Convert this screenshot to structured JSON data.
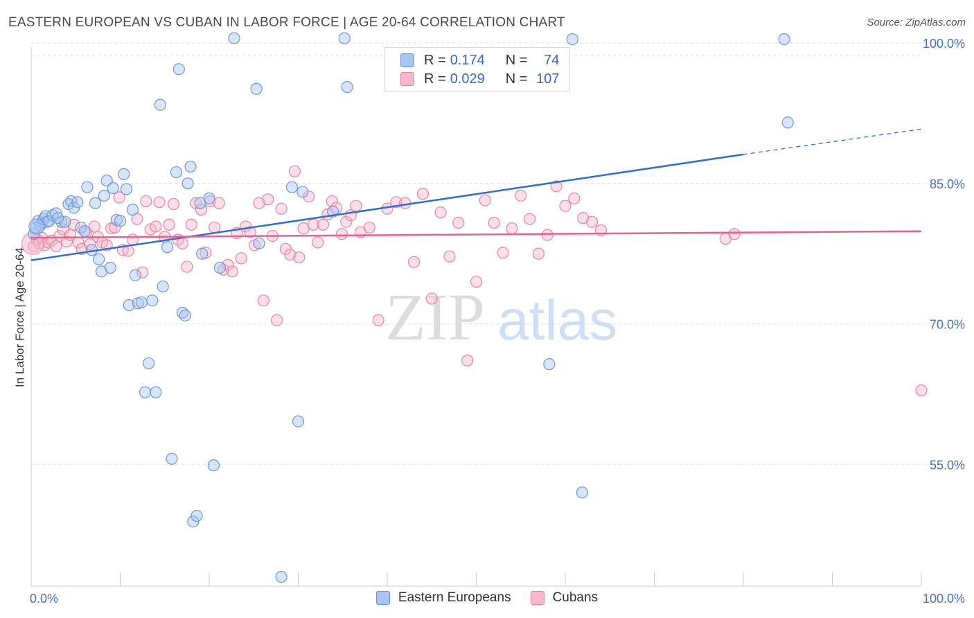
{
  "title": "EASTERN EUROPEAN VS CUBAN IN LABOR FORCE | AGE 20-64 CORRELATION CHART",
  "source": "Source: ZipAtlas.com",
  "watermark": {
    "part1": "ZIP",
    "part2": "atlas"
  },
  "legend": {
    "rows": [
      {
        "r_label": "R =",
        "r_value": "0.174",
        "n_label": "N =",
        "n_value": "74"
      },
      {
        "r_label": "R =",
        "r_value": "0.029",
        "n_label": "N =",
        "n_value": "107"
      }
    ]
  },
  "colors": {
    "blue_fill": "#a9c4f0",
    "blue_stroke": "#6d97dd",
    "blue_line": "#2f6fd0",
    "pink_fill": "#f7b8cb",
    "pink_stroke": "#e8849f",
    "pink_line": "#e8608c",
    "tick_label": "#4472c4",
    "grid": "#dddddd"
  },
  "chart_data": {
    "type": "scatter",
    "xlabel": "",
    "ylabel": "In Labor Force | Age 20-64",
    "xlim": [
      0,
      100
    ],
    "ylim": [
      42,
      100
    ],
    "x_tick_labels": [
      "0.0%",
      "100.0%"
    ],
    "y_ticks": [
      55,
      70,
      85,
      100
    ],
    "y_tick_labels": [
      "55.0%",
      "70.0%",
      "85.0%",
      "100.0%"
    ],
    "grid": true,
    "legend_position": "bottom",
    "series": [
      {
        "name": "Eastern Europeans",
        "r": 0.174,
        "n": 74,
        "trend": {
          "x0": 0,
          "y0": 76.8,
          "x1": 80,
          "y1": 88.1,
          "dash_to_x": 100,
          "dash_to_y": 90.8
        },
        "points": [
          [
            0.8,
            81.0
          ],
          [
            1.0,
            80.5
          ],
          [
            1.2,
            80.8
          ],
          [
            1.4,
            81.2
          ],
          [
            1.6,
            81.5
          ],
          [
            1.8,
            80.9
          ],
          [
            2.0,
            81.0
          ],
          [
            2.4,
            81.6
          ],
          [
            2.8,
            81.8
          ],
          [
            3.4,
            80.9
          ],
          [
            3.8,
            80.9
          ],
          [
            4.2,
            82.8
          ],
          [
            4.5,
            83.1
          ],
          [
            4.8,
            82.4
          ],
          [
            5.2,
            83.0
          ],
          [
            5.6,
            80.3
          ],
          [
            6.0,
            79.9
          ],
          [
            6.3,
            84.6
          ],
          [
            6.8,
            77.9
          ],
          [
            7.2,
            82.9
          ],
          [
            7.6,
            76.9
          ],
          [
            7.9,
            75.6
          ],
          [
            8.2,
            83.7
          ],
          [
            8.5,
            85.3
          ],
          [
            8.9,
            76.0
          ],
          [
            9.2,
            84.5
          ],
          [
            9.6,
            81.1
          ],
          [
            10.0,
            81.0
          ],
          [
            10.4,
            86.0
          ],
          [
            10.7,
            84.4
          ],
          [
            11.0,
            72.0
          ],
          [
            11.4,
            82.2
          ],
          [
            11.7,
            75.2
          ],
          [
            12.0,
            72.2
          ],
          [
            12.4,
            72.3
          ],
          [
            12.8,
            62.7
          ],
          [
            13.2,
            65.8
          ],
          [
            13.6,
            72.5
          ],
          [
            14.0,
            62.7
          ],
          [
            14.5,
            93.4
          ],
          [
            14.8,
            74.0
          ],
          [
            15.3,
            78.2
          ],
          [
            15.8,
            55.6
          ],
          [
            16.3,
            86.2
          ],
          [
            16.6,
            97.2
          ],
          [
            17.0,
            71.2
          ],
          [
            17.3,
            70.9
          ],
          [
            17.6,
            85.0
          ],
          [
            17.9,
            86.8
          ],
          [
            18.2,
            48.9
          ],
          [
            18.6,
            49.5
          ],
          [
            19.0,
            82.9
          ],
          [
            19.2,
            77.5
          ],
          [
            20.0,
            83.4
          ],
          [
            20.5,
            54.9
          ],
          [
            21.2,
            76.0
          ],
          [
            22.8,
            100.5
          ],
          [
            25.3,
            95.1
          ],
          [
            25.6,
            78.6
          ],
          [
            28.1,
            43.0
          ],
          [
            29.3,
            84.6
          ],
          [
            30.0,
            59.6
          ],
          [
            30.5,
            84.1
          ],
          [
            33.9,
            82.0
          ],
          [
            35.2,
            100.5
          ],
          [
            35.5,
            95.3
          ],
          [
            58.2,
            65.7
          ],
          [
            60.8,
            100.4
          ],
          [
            61.9,
            52.0
          ],
          [
            84.6,
            100.4
          ],
          [
            85.0,
            91.5
          ],
          [
            0.3,
            79.6
          ],
          [
            0.5,
            80.3
          ],
          [
            3.0,
            81.3
          ]
        ]
      },
      {
        "name": "Cubans",
        "r": 0.029,
        "n": 107,
        "trend": {
          "x0": 0,
          "y0": 79.2,
          "x1": 100,
          "y1": 79.9
        },
        "points": [
          [
            0.3,
            78.3
          ],
          [
            0.6,
            79.0
          ],
          [
            0.9,
            78.6
          ],
          [
            1.2,
            79.2
          ],
          [
            1.5,
            78.4
          ],
          [
            1.9,
            78.7
          ],
          [
            2.3,
            78.9
          ],
          [
            2.8,
            78.3
          ],
          [
            3.2,
            79.4
          ],
          [
            3.6,
            80.1
          ],
          [
            4.0,
            78.8
          ],
          [
            4.4,
            79.5
          ],
          [
            4.8,
            80.6
          ],
          [
            5.3,
            78.7
          ],
          [
            5.7,
            78.0
          ],
          [
            6.2,
            79.8
          ],
          [
            6.6,
            78.5
          ],
          [
            7.1,
            80.4
          ],
          [
            7.5,
            79.3
          ],
          [
            8.0,
            78.7
          ],
          [
            8.5,
            78.4
          ],
          [
            9.0,
            80.2
          ],
          [
            9.4,
            80.3
          ],
          [
            9.9,
            83.5
          ],
          [
            10.3,
            77.9
          ],
          [
            10.9,
            77.8
          ],
          [
            11.4,
            79.0
          ],
          [
            11.9,
            81.2
          ],
          [
            12.5,
            75.5
          ],
          [
            12.9,
            83.1
          ],
          [
            13.4,
            80.1
          ],
          [
            14.0,
            80.4
          ],
          [
            14.4,
            83.0
          ],
          [
            15.0,
            79.3
          ],
          [
            15.5,
            80.6
          ],
          [
            16.0,
            82.8
          ],
          [
            16.5,
            79.0
          ],
          [
            17.0,
            78.6
          ],
          [
            17.5,
            76.1
          ],
          [
            18.0,
            80.6
          ],
          [
            18.5,
            82.9
          ],
          [
            19.1,
            82.2
          ],
          [
            19.6,
            77.6
          ],
          [
            20.1,
            83.1
          ],
          [
            20.6,
            80.3
          ],
          [
            21.1,
            82.9
          ],
          [
            21.6,
            75.8
          ],
          [
            22.1,
            76.3
          ],
          [
            22.6,
            75.6
          ],
          [
            23.1,
            79.7
          ],
          [
            23.6,
            77.0
          ],
          [
            24.1,
            80.4
          ],
          [
            24.6,
            79.8
          ],
          [
            25.1,
            78.4
          ],
          [
            25.6,
            82.9
          ],
          [
            26.1,
            72.5
          ],
          [
            26.6,
            83.3
          ],
          [
            27.1,
            79.4
          ],
          [
            27.6,
            70.4
          ],
          [
            28.1,
            82.3
          ],
          [
            28.6,
            78.0
          ],
          [
            29.1,
            77.4
          ],
          [
            29.6,
            86.3
          ],
          [
            30.1,
            77.1
          ],
          [
            30.6,
            80.2
          ],
          [
            31.2,
            83.6
          ],
          [
            31.7,
            80.6
          ],
          [
            32.2,
            78.7
          ],
          [
            32.8,
            80.6
          ],
          [
            33.3,
            81.7
          ],
          [
            33.8,
            83.1
          ],
          [
            34.3,
            82.4
          ],
          [
            34.9,
            79.6
          ],
          [
            35.4,
            80.9
          ],
          [
            35.9,
            81.6
          ],
          [
            36.5,
            82.6
          ],
          [
            37.0,
            79.8
          ],
          [
            38.0,
            80.3
          ],
          [
            39.0,
            70.4
          ],
          [
            40.0,
            82.3
          ],
          [
            41.0,
            83.0
          ],
          [
            42.0,
            82.9
          ],
          [
            43.0,
            76.6
          ],
          [
            44.0,
            83.9
          ],
          [
            45.0,
            72.7
          ],
          [
            46.0,
            81.9
          ],
          [
            47.0,
            77.2
          ],
          [
            48.0,
            80.8
          ],
          [
            49.0,
            66.1
          ],
          [
            50.0,
            74.5
          ],
          [
            51.0,
            83.2
          ],
          [
            52.0,
            80.8
          ],
          [
            53.0,
            77.6
          ],
          [
            54.0,
            80.2
          ],
          [
            55.0,
            83.7
          ],
          [
            56.0,
            81.2
          ],
          [
            57.0,
            77.5
          ],
          [
            58.0,
            79.5
          ],
          [
            59.0,
            84.7
          ],
          [
            60.0,
            82.6
          ],
          [
            61.0,
            83.4
          ],
          [
            62.0,
            81.3
          ],
          [
            63.0,
            80.9
          ],
          [
            64.0,
            80.0
          ],
          [
            78.0,
            79.1
          ],
          [
            79.0,
            79.6
          ],
          [
            100.0,
            62.9
          ]
        ]
      }
    ]
  }
}
